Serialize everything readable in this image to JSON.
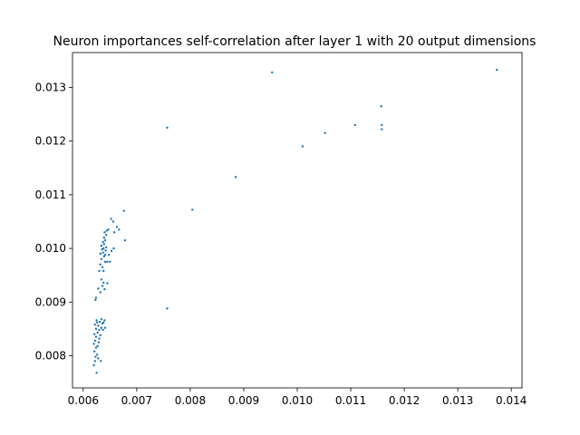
{
  "chart_data": {
    "type": "scatter",
    "title": "Neuron importances self-correlation after layer 1 with 20 output dimensions",
    "xlabel": "",
    "ylabel": "",
    "xlim": [
      0.0058,
      0.0142
    ],
    "ylim": [
      0.0074,
      0.01365
    ],
    "xticks": [
      0.006,
      0.007,
      0.008,
      0.009,
      0.01,
      0.011,
      0.012,
      0.013,
      0.014
    ],
    "xtick_labels": [
      "0.006",
      "0.007",
      "0.008",
      "0.009",
      "0.010",
      "0.011",
      "0.012",
      "0.013",
      "0.014"
    ],
    "yticks": [
      0.008,
      0.009,
      0.01,
      0.011,
      0.012,
      0.013
    ],
    "ytick_labels": [
      "0.008",
      "0.009",
      "0.010",
      "0.011",
      "0.012",
      "0.013"
    ],
    "grid": false,
    "legend": null,
    "marker_color": "#1f77b4",
    "points": [
      [
        0.0062,
        0.00782
      ],
      [
        0.00622,
        0.0079
      ],
      [
        0.00625,
        0.00768
      ],
      [
        0.00623,
        0.00798
      ],
      [
        0.00621,
        0.00808
      ],
      [
        0.00626,
        0.00802
      ],
      [
        0.00628,
        0.00795
      ],
      [
        0.00624,
        0.00815
      ],
      [
        0.0062,
        0.00822
      ],
      [
        0.00627,
        0.00818
      ],
      [
        0.00622,
        0.00828
      ],
      [
        0.00629,
        0.00825
      ],
      [
        0.00624,
        0.00835
      ],
      [
        0.0063,
        0.00832
      ],
      [
        0.00621,
        0.0084
      ],
      [
        0.00627,
        0.00843
      ],
      [
        0.00632,
        0.00838
      ],
      [
        0.00624,
        0.0085
      ],
      [
        0.0063,
        0.00848
      ],
      [
        0.00634,
        0.00852
      ],
      [
        0.00622,
        0.00858
      ],
      [
        0.00628,
        0.00856
      ],
      [
        0.00636,
        0.0086
      ],
      [
        0.00631,
        0.00863
      ],
      [
        0.00638,
        0.00862
      ],
      [
        0.00625,
        0.00866
      ],
      [
        0.00634,
        0.00868
      ],
      [
        0.0064,
        0.00866
      ],
      [
        0.00637,
        0.00848
      ],
      [
        0.00641,
        0.00852
      ],
      [
        0.00633,
        0.0079
      ],
      [
        0.00626,
        0.00862
      ],
      [
        0.00623,
        0.00904
      ],
      [
        0.00624,
        0.00908
      ],
      [
        0.00628,
        0.00925
      ],
      [
        0.00632,
        0.00918
      ],
      [
        0.00636,
        0.0093
      ],
      [
        0.00634,
        0.00942
      ],
      [
        0.00638,
        0.00936
      ],
      [
        0.0064,
        0.00924
      ],
      [
        0.00645,
        0.00935
      ],
      [
        0.0063,
        0.00958
      ],
      [
        0.00638,
        0.00958
      ],
      [
        0.00632,
        0.0097
      ],
      [
        0.00636,
        0.00965
      ],
      [
        0.00641,
        0.00975
      ],
      [
        0.00634,
        0.0098
      ],
      [
        0.00639,
        0.00985
      ],
      [
        0.00632,
        0.0099
      ],
      [
        0.00637,
        0.00992
      ],
      [
        0.00641,
        0.00988
      ],
      [
        0.00635,
        0.00998
      ],
      [
        0.00638,
        0.01
      ],
      [
        0.00642,
        0.00996
      ],
      [
        0.00634,
        0.01005
      ],
      [
        0.00639,
        0.01008
      ],
      [
        0.00643,
        0.01002
      ],
      [
        0.00637,
        0.01012
      ],
      [
        0.00641,
        0.01015
      ],
      [
        0.00639,
        0.0102
      ],
      [
        0.00643,
        0.01025
      ],
      [
        0.0064,
        0.0103
      ],
      [
        0.00644,
        0.01033
      ],
      [
        0.00647,
        0.01035
      ],
      [
        0.00645,
        0.00975
      ],
      [
        0.0065,
        0.00975
      ],
      [
        0.00648,
        0.00988
      ],
      [
        0.00653,
        0.00995
      ],
      [
        0.00657,
        0.01
      ],
      [
        0.00652,
        0.01055
      ],
      [
        0.00656,
        0.0105
      ],
      [
        0.00658,
        0.0103
      ],
      [
        0.00663,
        0.0104
      ],
      [
        0.00667,
        0.01035
      ],
      [
        0.00676,
        0.0107
      ],
      [
        0.00678,
        0.01015
      ],
      [
        0.00757,
        0.00888
      ],
      [
        0.00757,
        0.01225
      ],
      [
        0.00804,
        0.01072
      ],
      [
        0.00885,
        0.01133
      ],
      [
        0.00953,
        0.01328
      ],
      [
        0.0101,
        0.0119
      ],
      [
        0.01052,
        0.01215
      ],
      [
        0.01108,
        0.0123
      ],
      [
        0.01157,
        0.01265
      ],
      [
        0.01158,
        0.01222
      ],
      [
        0.01158,
        0.0123
      ],
      [
        0.01373,
        0.01333
      ]
    ]
  }
}
